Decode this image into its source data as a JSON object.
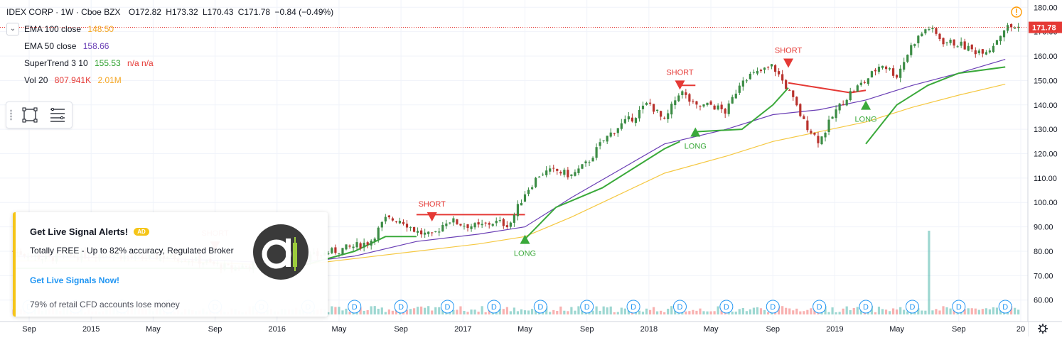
{
  "legend": {
    "symbol": "IDEX CORP",
    "interval": "1W",
    "exchange": "Cboe BZX",
    "open": "O172.82",
    "high": "H173.32",
    "low": "L170.43",
    "close": "C171.78",
    "change": "−0.84 (−0.49%)",
    "indicators": [
      {
        "label": "EMA 100 close",
        "value": "148.50",
        "color": "#f5a623"
      },
      {
        "label": "EMA 50 close",
        "value": "158.66",
        "color": "#6a3fb5"
      },
      {
        "label": "SuperTrend 3 10",
        "value": "155.53",
        "extra1": "n/a",
        "extra2": "n/a",
        "color": "#2ca02c",
        "extra_color": "#e53935"
      },
      {
        "label": "Vol 20",
        "value": "807.941K",
        "extra1": "2.01M",
        "color": "#e53935",
        "extra_color": "#f5a623"
      }
    ]
  },
  "colors": {
    "up": "#26a69a",
    "down": "#ef5350",
    "candle_up": "#3c8c45",
    "candle_down": "#b8322d",
    "ema100": "#f5c842",
    "ema50": "#6a3fb5",
    "supertrend_up": "#3aa93a",
    "supertrend_down": "#e53935",
    "price_label": "#e53935",
    "event_badge": "#2196f3"
  },
  "chart_data": {
    "type": "candlestick",
    "symbol": "IDEX CORP",
    "interval": "1W",
    "y_ticks": [
      60,
      70,
      80,
      90,
      100,
      110,
      120,
      130,
      140,
      150,
      160,
      170,
      180
    ],
    "ylim": [
      57,
      183
    ],
    "x_tick_labels": [
      "Sep",
      "2015",
      "May",
      "Sep",
      "2016",
      "May",
      "Sep",
      "2017",
      "May",
      "Sep",
      "2018",
      "May",
      "Sep",
      "2019",
      "May",
      "Sep",
      "20"
    ],
    "x_tick_dates": [
      "2014-09",
      "2015-01",
      "2015-05",
      "2015-09",
      "2016-01",
      "2016-05",
      "2016-09",
      "2017-01",
      "2017-05",
      "2017-09",
      "2018-01",
      "2018-05",
      "2018-09",
      "2019-01",
      "2019-05",
      "2019-09",
      "2020-01"
    ],
    "last_price": "171.78",
    "close_path": [
      [
        "2014-08",
        80
      ],
      [
        "2014-10",
        77
      ],
      [
        "2014-12",
        78
      ],
      [
        "2015-02",
        79
      ],
      [
        "2015-04",
        77
      ],
      [
        "2015-06",
        78
      ],
      [
        "2015-08",
        76
      ],
      [
        "2015-10",
        73
      ],
      [
        "2015-12",
        75
      ],
      [
        "2016-02",
        76
      ],
      [
        "2016-04",
        79
      ],
      [
        "2016-06",
        82
      ],
      [
        "2016-07",
        84
      ],
      [
        "2016-08",
        93
      ],
      [
        "2016-09",
        93
      ],
      [
        "2016-10",
        88
      ],
      [
        "2016-11",
        86
      ],
      [
        "2016-12",
        93
      ],
      [
        "2017-01",
        91
      ],
      [
        "2017-02",
        90
      ],
      [
        "2017-03",
        92
      ],
      [
        "2017-04",
        91
      ],
      [
        "2017-05",
        104
      ],
      [
        "2017-06",
        112
      ],
      [
        "2017-07",
        113
      ],
      [
        "2017-08",
        111
      ],
      [
        "2017-09",
        116
      ],
      [
        "2017-10",
        125
      ],
      [
        "2017-11",
        131
      ],
      [
        "2017-12",
        135
      ],
      [
        "2018-01",
        141
      ],
      [
        "2018-02",
        133
      ],
      [
        "2018-03",
        146
      ],
      [
        "2018-04",
        139
      ],
      [
        "2018-05",
        140
      ],
      [
        "2018-06",
        137
      ],
      [
        "2018-07",
        151
      ],
      [
        "2018-08",
        153
      ],
      [
        "2018-09",
        156
      ],
      [
        "2018-10",
        146
      ],
      [
        "2018-11",
        133
      ],
      [
        "2018-12",
        125
      ],
      [
        "2019-01",
        137
      ],
      [
        "2019-02",
        145
      ],
      [
        "2019-03",
        150
      ],
      [
        "2019-04",
        157
      ],
      [
        "2019-05",
        152
      ],
      [
        "2019-06",
        165
      ],
      [
        "2019-07",
        172
      ],
      [
        "2019-08",
        166
      ],
      [
        "2019-09",
        165
      ],
      [
        "2019-10",
        162
      ],
      [
        "2019-11",
        163
      ],
      [
        "2019-12",
        171.78
      ]
    ],
    "ema50": [
      [
        "2014-08",
        78
      ],
      [
        "2015-06",
        77
      ],
      [
        "2016-02",
        75
      ],
      [
        "2016-06",
        78
      ],
      [
        "2016-10",
        84
      ],
      [
        "2017-02",
        87
      ],
      [
        "2017-05",
        90
      ],
      [
        "2017-08",
        102
      ],
      [
        "2017-11",
        113
      ],
      [
        "2018-02",
        124
      ],
      [
        "2018-06",
        130
      ],
      [
        "2018-09",
        136
      ],
      [
        "2018-12",
        138
      ],
      [
        "2019-03",
        142
      ],
      [
        "2019-06",
        148
      ],
      [
        "2019-09",
        153
      ],
      [
        "2019-12",
        158.66
      ]
    ],
    "ema100": [
      [
        "2014-08",
        76
      ],
      [
        "2015-06",
        76
      ],
      [
        "2016-02",
        74
      ],
      [
        "2016-06",
        77
      ],
      [
        "2016-10",
        80
      ],
      [
        "2017-02",
        83
      ],
      [
        "2017-05",
        86
      ],
      [
        "2017-08",
        94
      ],
      [
        "2017-11",
        103
      ],
      [
        "2018-02",
        112
      ],
      [
        "2018-06",
        119
      ],
      [
        "2018-09",
        125
      ],
      [
        "2018-12",
        129
      ],
      [
        "2019-03",
        133
      ],
      [
        "2019-06",
        139
      ],
      [
        "2019-09",
        144
      ],
      [
        "2019-12",
        148.5
      ]
    ],
    "supertrend": [
      {
        "trend": "up",
        "points": [
          [
            "2014-08",
            73
          ],
          [
            "2016-02",
            73
          ],
          [
            "2016-06",
            80
          ],
          [
            "2016-08",
            86
          ],
          [
            "2016-10",
            86
          ]
        ]
      },
      {
        "trend": "down",
        "points": [
          [
            "2016-10",
            95
          ],
          [
            "2017-05",
            95
          ]
        ]
      },
      {
        "trend": "up",
        "points": [
          [
            "2017-05",
            85
          ],
          [
            "2017-07",
            98
          ],
          [
            "2017-10",
            106
          ],
          [
            "2017-12",
            114
          ],
          [
            "2018-02",
            122
          ],
          [
            "2018-03",
            125
          ]
        ]
      },
      {
        "trend": "down",
        "points": [
          [
            "2018-03",
            148
          ],
          [
            "2018-04",
            148
          ]
        ]
      },
      {
        "trend": "up",
        "points": [
          [
            "2018-04",
            129
          ],
          [
            "2018-07",
            130
          ],
          [
            "2018-09",
            140
          ],
          [
            "2018-10",
            147
          ]
        ]
      },
      {
        "trend": "down",
        "points": [
          [
            "2018-10",
            149
          ],
          [
            "2019-02",
            145
          ],
          [
            "2019-03",
            146
          ]
        ]
      },
      {
        "trend": "up",
        "points": [
          [
            "2019-03",
            124
          ],
          [
            "2019-05",
            140
          ],
          [
            "2019-07",
            148
          ],
          [
            "2019-09",
            153
          ],
          [
            "2019-12",
            155.53
          ]
        ]
      }
    ],
    "signals": [
      {
        "label": "SHORT",
        "type": "short",
        "date": "2016-11",
        "price": 96
      },
      {
        "label": "LONG",
        "type": "long",
        "date": "2017-05",
        "price": 83
      },
      {
        "label": "SHORT",
        "type": "short",
        "date": "2018-03",
        "price": 150
      },
      {
        "label": "LONG",
        "type": "long",
        "date": "2018-04",
        "price": 127
      },
      {
        "label": "SHORT",
        "type": "short",
        "date": "2018-10",
        "price": 159
      },
      {
        "label": "LONG",
        "type": "long",
        "date": "2019-03",
        "price": 138
      },
      {
        "label": "SHORT",
        "type": "short",
        "date": "2015-09",
        "price": 84
      }
    ],
    "dividend_markers": {
      "label": "D",
      "dates": [
        "2014-09",
        "2014-12",
        "2015-03",
        "2015-06",
        "2015-09",
        "2015-12",
        "2016-03",
        "2016-06",
        "2016-09",
        "2016-12",
        "2017-03",
        "2017-06",
        "2017-09",
        "2017-12",
        "2018-03",
        "2018-06",
        "2018-09",
        "2018-12",
        "2019-03",
        "2019-06",
        "2019-09",
        "2019-12"
      ]
    }
  },
  "ad": {
    "title": "Get Live Signal Alerts!",
    "badge": "AD",
    "description": "Totally FREE - Up to 82% accuracy, Regulated Broker",
    "link": "Get Live Signals Now!",
    "disclaimer": "79% of retail CFD accounts lose money",
    "logo_glyph": "a",
    "logo_bg": "#3a3a3a",
    "logo_accent": "#9ccc3c"
  },
  "bottom_right_icon": "gear-icon",
  "alert_icon": "alert-clock-icon"
}
